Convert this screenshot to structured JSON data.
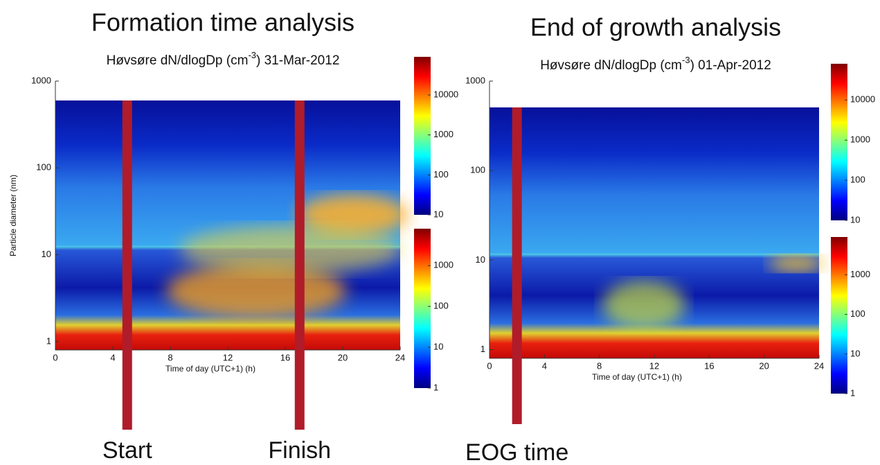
{
  "chart_data": [
    {
      "type": "spectrogram",
      "heading": "Formation time analysis",
      "title": "Høvsøre dN/dlogDp (cm",
      "title_sup": "-3",
      "title_end": ") 31-Mar-2012",
      "xlabel": "Time of day (UTC+1) (h)",
      "ylabel": "Particle diameter (nm)",
      "xlim": [
        0,
        24
      ],
      "xticks": [
        0,
        4,
        8,
        12,
        16,
        20,
        24
      ],
      "ylim": [
        0.8,
        1000
      ],
      "yticks": [
        1,
        10,
        100,
        1000
      ],
      "ylog": true,
      "colorbars": [
        {
          "lim": [
            10,
            90000
          ],
          "ticks": [
            10,
            100,
            1000,
            10000
          ],
          "log": true
        },
        {
          "lim": [
            1,
            8000
          ],
          "ticks": [
            1,
            10,
            100,
            1000
          ],
          "log": true
        }
      ],
      "markers": [
        {
          "value": 5,
          "label": "Start"
        },
        {
          "value": 17,
          "label": "Finish"
        }
      ],
      "marker_color": "#b01c2a"
    },
    {
      "type": "spectrogram",
      "heading": "End of growth analysis",
      "title": "Høvsøre dN/dlogDp (cm",
      "title_sup": "-3",
      "title_end": ") 01-Apr-2012",
      "xlabel": "Time of day (UTC+1) (h)",
      "ylabel": null,
      "xlim": [
        0,
        24
      ],
      "xticks": [
        0,
        4,
        8,
        12,
        16,
        20,
        24
      ],
      "ylim": [
        0.8,
        1000
      ],
      "yticks": [
        1,
        10,
        100,
        1000
      ],
      "ylog": true,
      "colorbars": [
        {
          "lim": [
            10,
            80000
          ],
          "ticks": [
            10,
            100,
            1000,
            10000
          ],
          "log": true
        },
        {
          "lim": [
            1,
            9000
          ],
          "ticks": [
            1,
            10,
            100,
            1000
          ],
          "log": true
        }
      ],
      "markers": [
        {
          "value": 2,
          "label": "EOG time"
        }
      ],
      "marker_color": "#b01c2a"
    }
  ]
}
